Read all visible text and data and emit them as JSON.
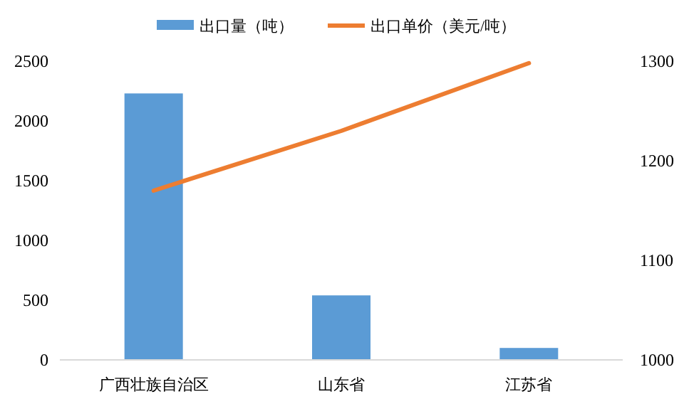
{
  "chart_data": {
    "type": "bar",
    "categories": [
      "广西壮族自治区",
      "山东省",
      "江苏省"
    ],
    "series": [
      {
        "name": "出口量（吨）",
        "color": "#5b9bd5",
        "values": [
          2230,
          540,
          100
        ]
      },
      {
        "name": "出口单价（美元/吨）",
        "type": "line",
        "axis": "y2",
        "color": "#ed7d31",
        "values": [
          1170,
          1230,
          1298
        ]
      }
    ],
    "ylim": [
      0,
      2500
    ],
    "yticks": [
      0,
      500,
      1000,
      1500,
      2000,
      2500
    ],
    "y2lim": [
      1000,
      1300
    ],
    "y2ticks": [
      1000,
      1100,
      1200,
      1300
    ],
    "grid": false,
    "legend": "top",
    "marker": "none"
  }
}
